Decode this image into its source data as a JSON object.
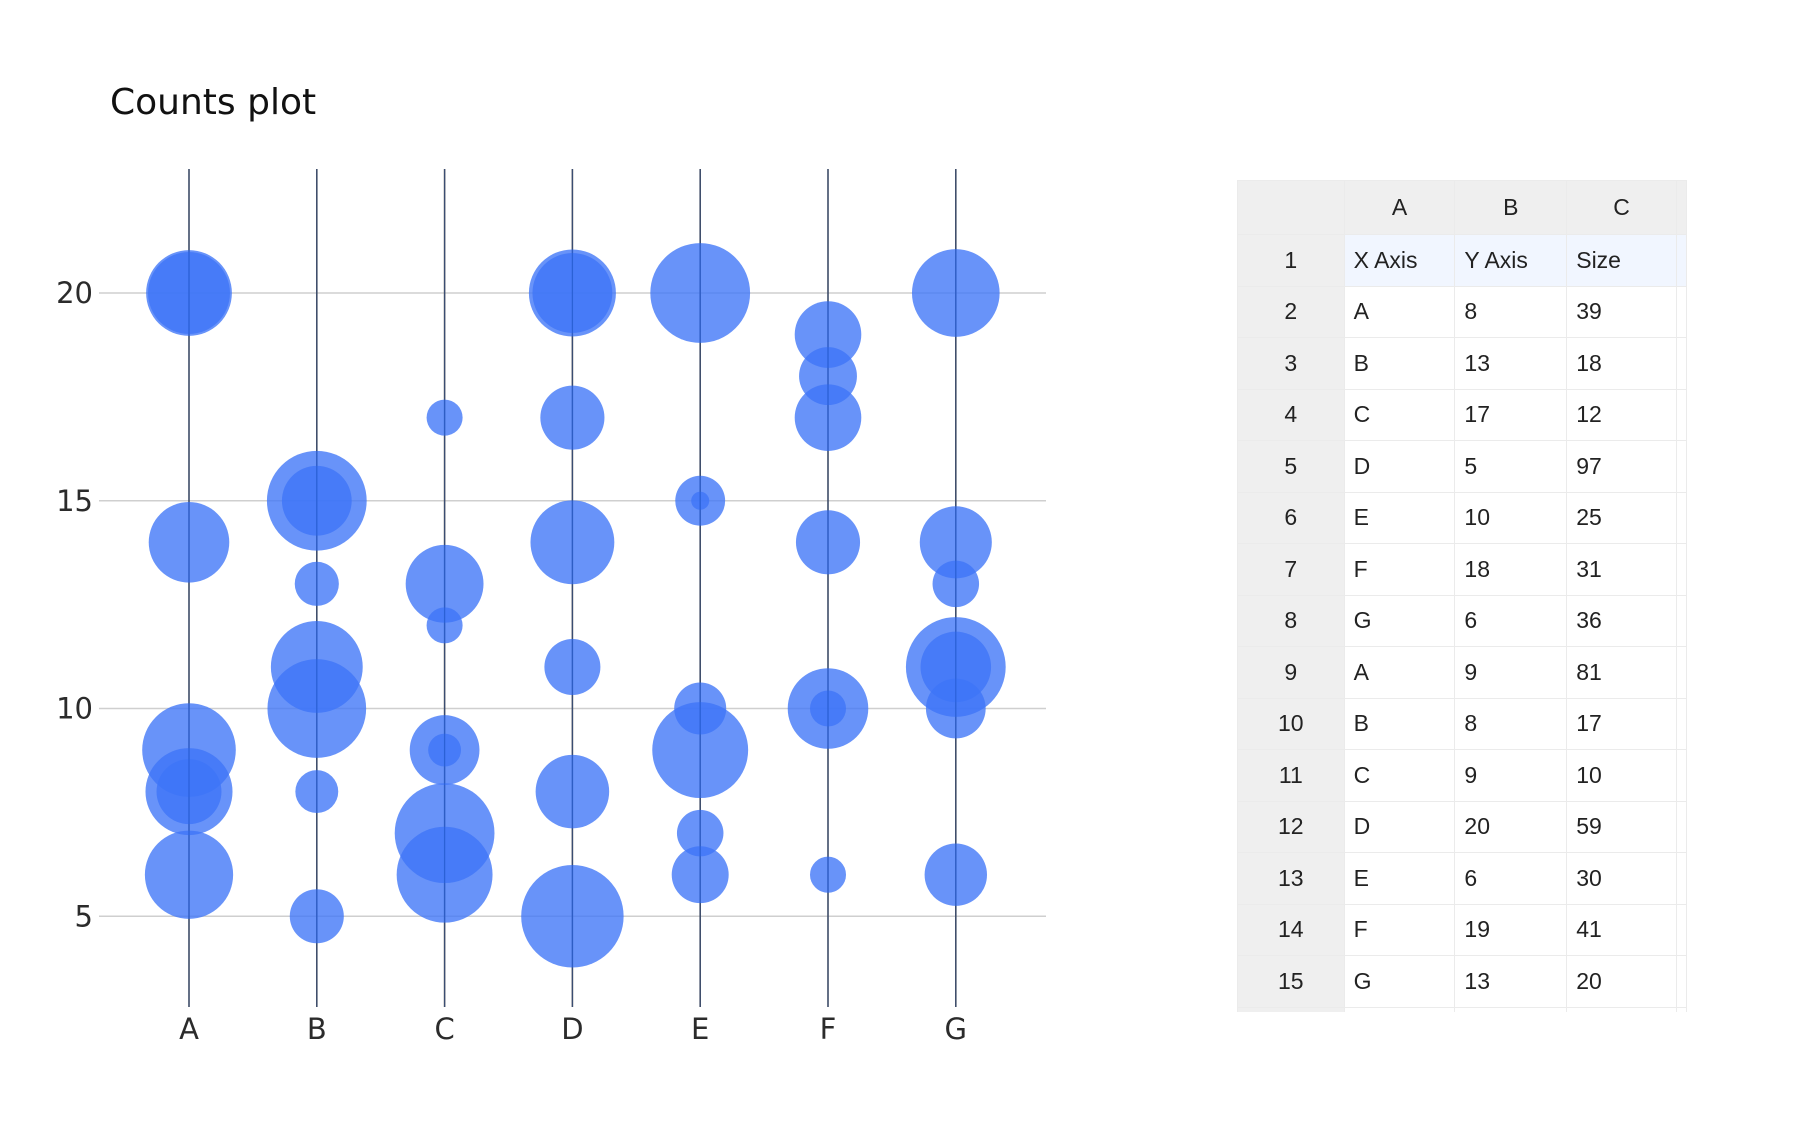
{
  "chart_data": {
    "type": "scatter",
    "subtype": "bubble",
    "title": "Counts plot",
    "xlabel": "",
    "ylabel": "",
    "categories": [
      "A",
      "B",
      "C",
      "D",
      "E",
      "F",
      "G"
    ],
    "y_ticks": [
      5,
      10,
      15,
      20
    ],
    "ylim": [
      2,
      23
    ],
    "grid": {
      "horizontal": true,
      "vertical_category_lines": true
    },
    "legend": "none",
    "bubble_color": "#3d74f7",
    "bubble_opacity": 0.78,
    "points": [
      {
        "x": "A",
        "y": 8,
        "size": 39
      },
      {
        "x": "B",
        "y": 13,
        "size": 18
      },
      {
        "x": "C",
        "y": 17,
        "size": 12
      },
      {
        "x": "D",
        "y": 5,
        "size": 97
      },
      {
        "x": "E",
        "y": 10,
        "size": 25
      },
      {
        "x": "F",
        "y": 18,
        "size": 31
      },
      {
        "x": "G",
        "y": 6,
        "size": 36
      },
      {
        "x": "A",
        "y": 9,
        "size": 81
      },
      {
        "x": "B",
        "y": 8,
        "size": 17
      },
      {
        "x": "C",
        "y": 9,
        "size": 10
      },
      {
        "x": "D",
        "y": 20,
        "size": 59
      },
      {
        "x": "E",
        "y": 6,
        "size": 30
      },
      {
        "x": "F",
        "y": 19,
        "size": 41
      },
      {
        "x": "G",
        "y": 13,
        "size": 20
      },
      {
        "x": "A",
        "y": 20,
        "size": 68
      },
      {
        "x": "A",
        "y": 20,
        "size": 62
      },
      {
        "x": "A",
        "y": 14,
        "size": 60
      },
      {
        "x": "A",
        "y": 8,
        "size": 70
      },
      {
        "x": "A",
        "y": 6,
        "size": 72
      },
      {
        "x": "B",
        "y": 15,
        "size": 92
      },
      {
        "x": "B",
        "y": 15,
        "size": 45
      },
      {
        "x": "B",
        "y": 11,
        "size": 78
      },
      {
        "x": "B",
        "y": 10,
        "size": 90
      },
      {
        "x": "B",
        "y": 5,
        "size": 27
      },
      {
        "x": "C",
        "y": 13,
        "size": 56
      },
      {
        "x": "C",
        "y": 12,
        "size": 12
      },
      {
        "x": "C",
        "y": 9,
        "size": 45
      },
      {
        "x": "C",
        "y": 7,
        "size": 92
      },
      {
        "x": "C",
        "y": 6,
        "size": 85
      },
      {
        "x": "D",
        "y": 20,
        "size": 70
      },
      {
        "x": "D",
        "y": 17,
        "size": 38
      },
      {
        "x": "D",
        "y": 14,
        "size": 65
      },
      {
        "x": "D",
        "y": 11,
        "size": 29
      },
      {
        "x": "D",
        "y": 8,
        "size": 50
      },
      {
        "x": "E",
        "y": 20,
        "size": 92
      },
      {
        "x": "E",
        "y": 15,
        "size": 23
      },
      {
        "x": "E",
        "y": 15,
        "size": 3
      },
      {
        "x": "E",
        "y": 9,
        "size": 85
      },
      {
        "x": "E",
        "y": 7,
        "size": 20
      },
      {
        "x": "F",
        "y": 17,
        "size": 41
      },
      {
        "x": "F",
        "y": 14,
        "size": 38
      },
      {
        "x": "F",
        "y": 10,
        "size": 60
      },
      {
        "x": "F",
        "y": 10,
        "size": 12
      },
      {
        "x": "F",
        "y": 6,
        "size": 12
      },
      {
        "x": "G",
        "y": 20,
        "size": 71
      },
      {
        "x": "G",
        "y": 14,
        "size": 48
      },
      {
        "x": "G",
        "y": 11,
        "size": 92
      },
      {
        "x": "G",
        "y": 11,
        "size": 46
      },
      {
        "x": "G",
        "y": 10,
        "size": 33
      }
    ]
  },
  "spreadsheet": {
    "column_headers": [
      "A",
      "B",
      "C"
    ],
    "rows": [
      {
        "n": "1",
        "cells": [
          "X Axis",
          "Y Axis",
          "Size"
        ]
      },
      {
        "n": "2",
        "cells": [
          "A",
          "8",
          "39"
        ]
      },
      {
        "n": "3",
        "cells": [
          "B",
          "13",
          "18"
        ]
      },
      {
        "n": "4",
        "cells": [
          "C",
          "17",
          "12"
        ]
      },
      {
        "n": "5",
        "cells": [
          "D",
          "5",
          "97"
        ]
      },
      {
        "n": "6",
        "cells": [
          "E",
          "10",
          "25"
        ]
      },
      {
        "n": "7",
        "cells": [
          "F",
          "18",
          "31"
        ]
      },
      {
        "n": "8",
        "cells": [
          "G",
          "6",
          "36"
        ]
      },
      {
        "n": "9",
        "cells": [
          "A",
          "9",
          "81"
        ]
      },
      {
        "n": "10",
        "cells": [
          "B",
          "8",
          "17"
        ]
      },
      {
        "n": "11",
        "cells": [
          "C",
          "9",
          "10"
        ]
      },
      {
        "n": "12",
        "cells": [
          "D",
          "20",
          "59"
        ]
      },
      {
        "n": "13",
        "cells": [
          "E",
          "6",
          "30"
        ]
      },
      {
        "n": "14",
        "cells": [
          "F",
          "19",
          "41"
        ]
      },
      {
        "n": "15",
        "cells": [
          "G",
          "13",
          "20"
        ]
      }
    ]
  }
}
